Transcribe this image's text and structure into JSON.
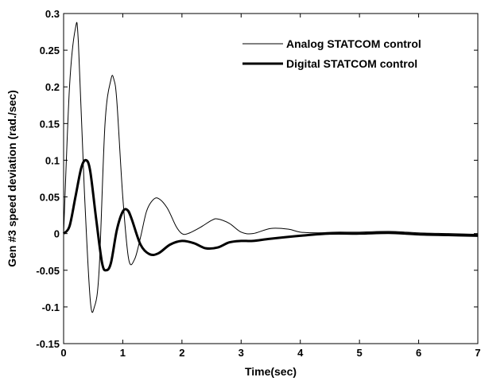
{
  "chart_data": {
    "type": "line",
    "title": "",
    "xlabel": "Time(sec)",
    "ylabel": "Gen #3 speed deviation (rad./sec)",
    "xlim": [
      0,
      7
    ],
    "ylim": [
      -0.15,
      0.3
    ],
    "xticks": [
      "0",
      "1",
      "2",
      "3",
      "4",
      "5",
      "6",
      "7"
    ],
    "yticks": [
      "-0.15",
      "-0.1",
      "-0.05",
      "0",
      "0.05",
      "0.1",
      "0.15",
      "0.2",
      "0.25",
      "0.3"
    ],
    "grid": false,
    "legend_position": "top-right",
    "series": [
      {
        "name": "Analog STATCOM control",
        "line_style": "thin",
        "color": "#000000",
        "x": [
          0,
          0.1,
          0.2,
          0.25,
          0.35,
          0.45,
          0.52,
          0.6,
          0.7,
          0.8,
          0.85,
          0.9,
          1.0,
          1.1,
          1.2,
          1.3,
          1.4,
          1.5,
          1.6,
          1.75,
          1.9,
          2.0,
          2.1,
          2.3,
          2.5,
          2.6,
          2.8,
          3.0,
          3.2,
          3.5,
          3.8,
          4.0,
          4.3,
          4.6,
          5.0,
          5.5,
          6.0,
          6.5,
          7.0
        ],
        "y": [
          0,
          0.2,
          0.28,
          0.26,
          0.06,
          -0.09,
          -0.1,
          -0.05,
          0.15,
          0.21,
          0.21,
          0.18,
          0.05,
          -0.035,
          -0.035,
          -0.005,
          0.03,
          0.045,
          0.048,
          0.035,
          0.01,
          0.0,
          0.0,
          0.008,
          0.018,
          0.02,
          0.014,
          0.002,
          0.0,
          0.007,
          0.006,
          0.002,
          0.001,
          0.002,
          0.002,
          0.003,
          0.001,
          0.0,
          -0.001
        ]
      },
      {
        "name": "Digital STATCOM control",
        "line_style": "thick",
        "color": "#000000",
        "x": [
          0,
          0.1,
          0.2,
          0.3,
          0.38,
          0.45,
          0.55,
          0.65,
          0.72,
          0.8,
          0.9,
          1.0,
          1.08,
          1.15,
          1.3,
          1.45,
          1.6,
          1.8,
          2.0,
          2.2,
          2.4,
          2.6,
          2.8,
          3.0,
          3.2,
          3.5,
          4.0,
          4.5,
          5.0,
          5.5,
          6.0,
          6.5,
          7.0
        ],
        "y": [
          0,
          0.01,
          0.05,
          0.09,
          0.1,
          0.085,
          0.02,
          -0.04,
          -0.05,
          -0.04,
          0.005,
          0.03,
          0.032,
          0.02,
          -0.015,
          -0.028,
          -0.027,
          -0.015,
          -0.01,
          -0.013,
          -0.02,
          -0.019,
          -0.012,
          -0.01,
          -0.01,
          -0.007,
          -0.003,
          0.0,
          0.0,
          0.001,
          -0.001,
          -0.002,
          -0.003
        ]
      }
    ]
  }
}
